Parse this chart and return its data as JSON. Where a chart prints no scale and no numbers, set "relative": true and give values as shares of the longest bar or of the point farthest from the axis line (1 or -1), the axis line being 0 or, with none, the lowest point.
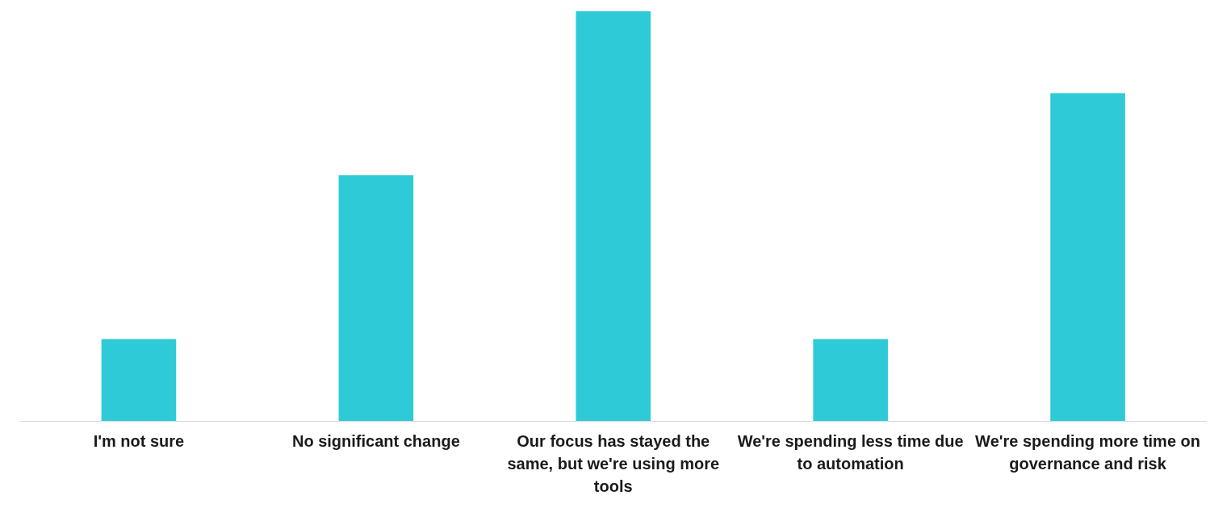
{
  "chart_data": {
    "type": "bar",
    "relative": true,
    "categories": [
      "I'm not sure",
      "No significant change",
      "Our focus has stayed the same, but we're using more tools",
      "We're spending less time due to automation",
      "We're spending more time on governance and risk"
    ],
    "values": [
      0.2,
      0.6,
      1,
      0.2,
      0.8
    ],
    "color": "#2ecad8",
    "grid": false,
    "legend": false
  }
}
